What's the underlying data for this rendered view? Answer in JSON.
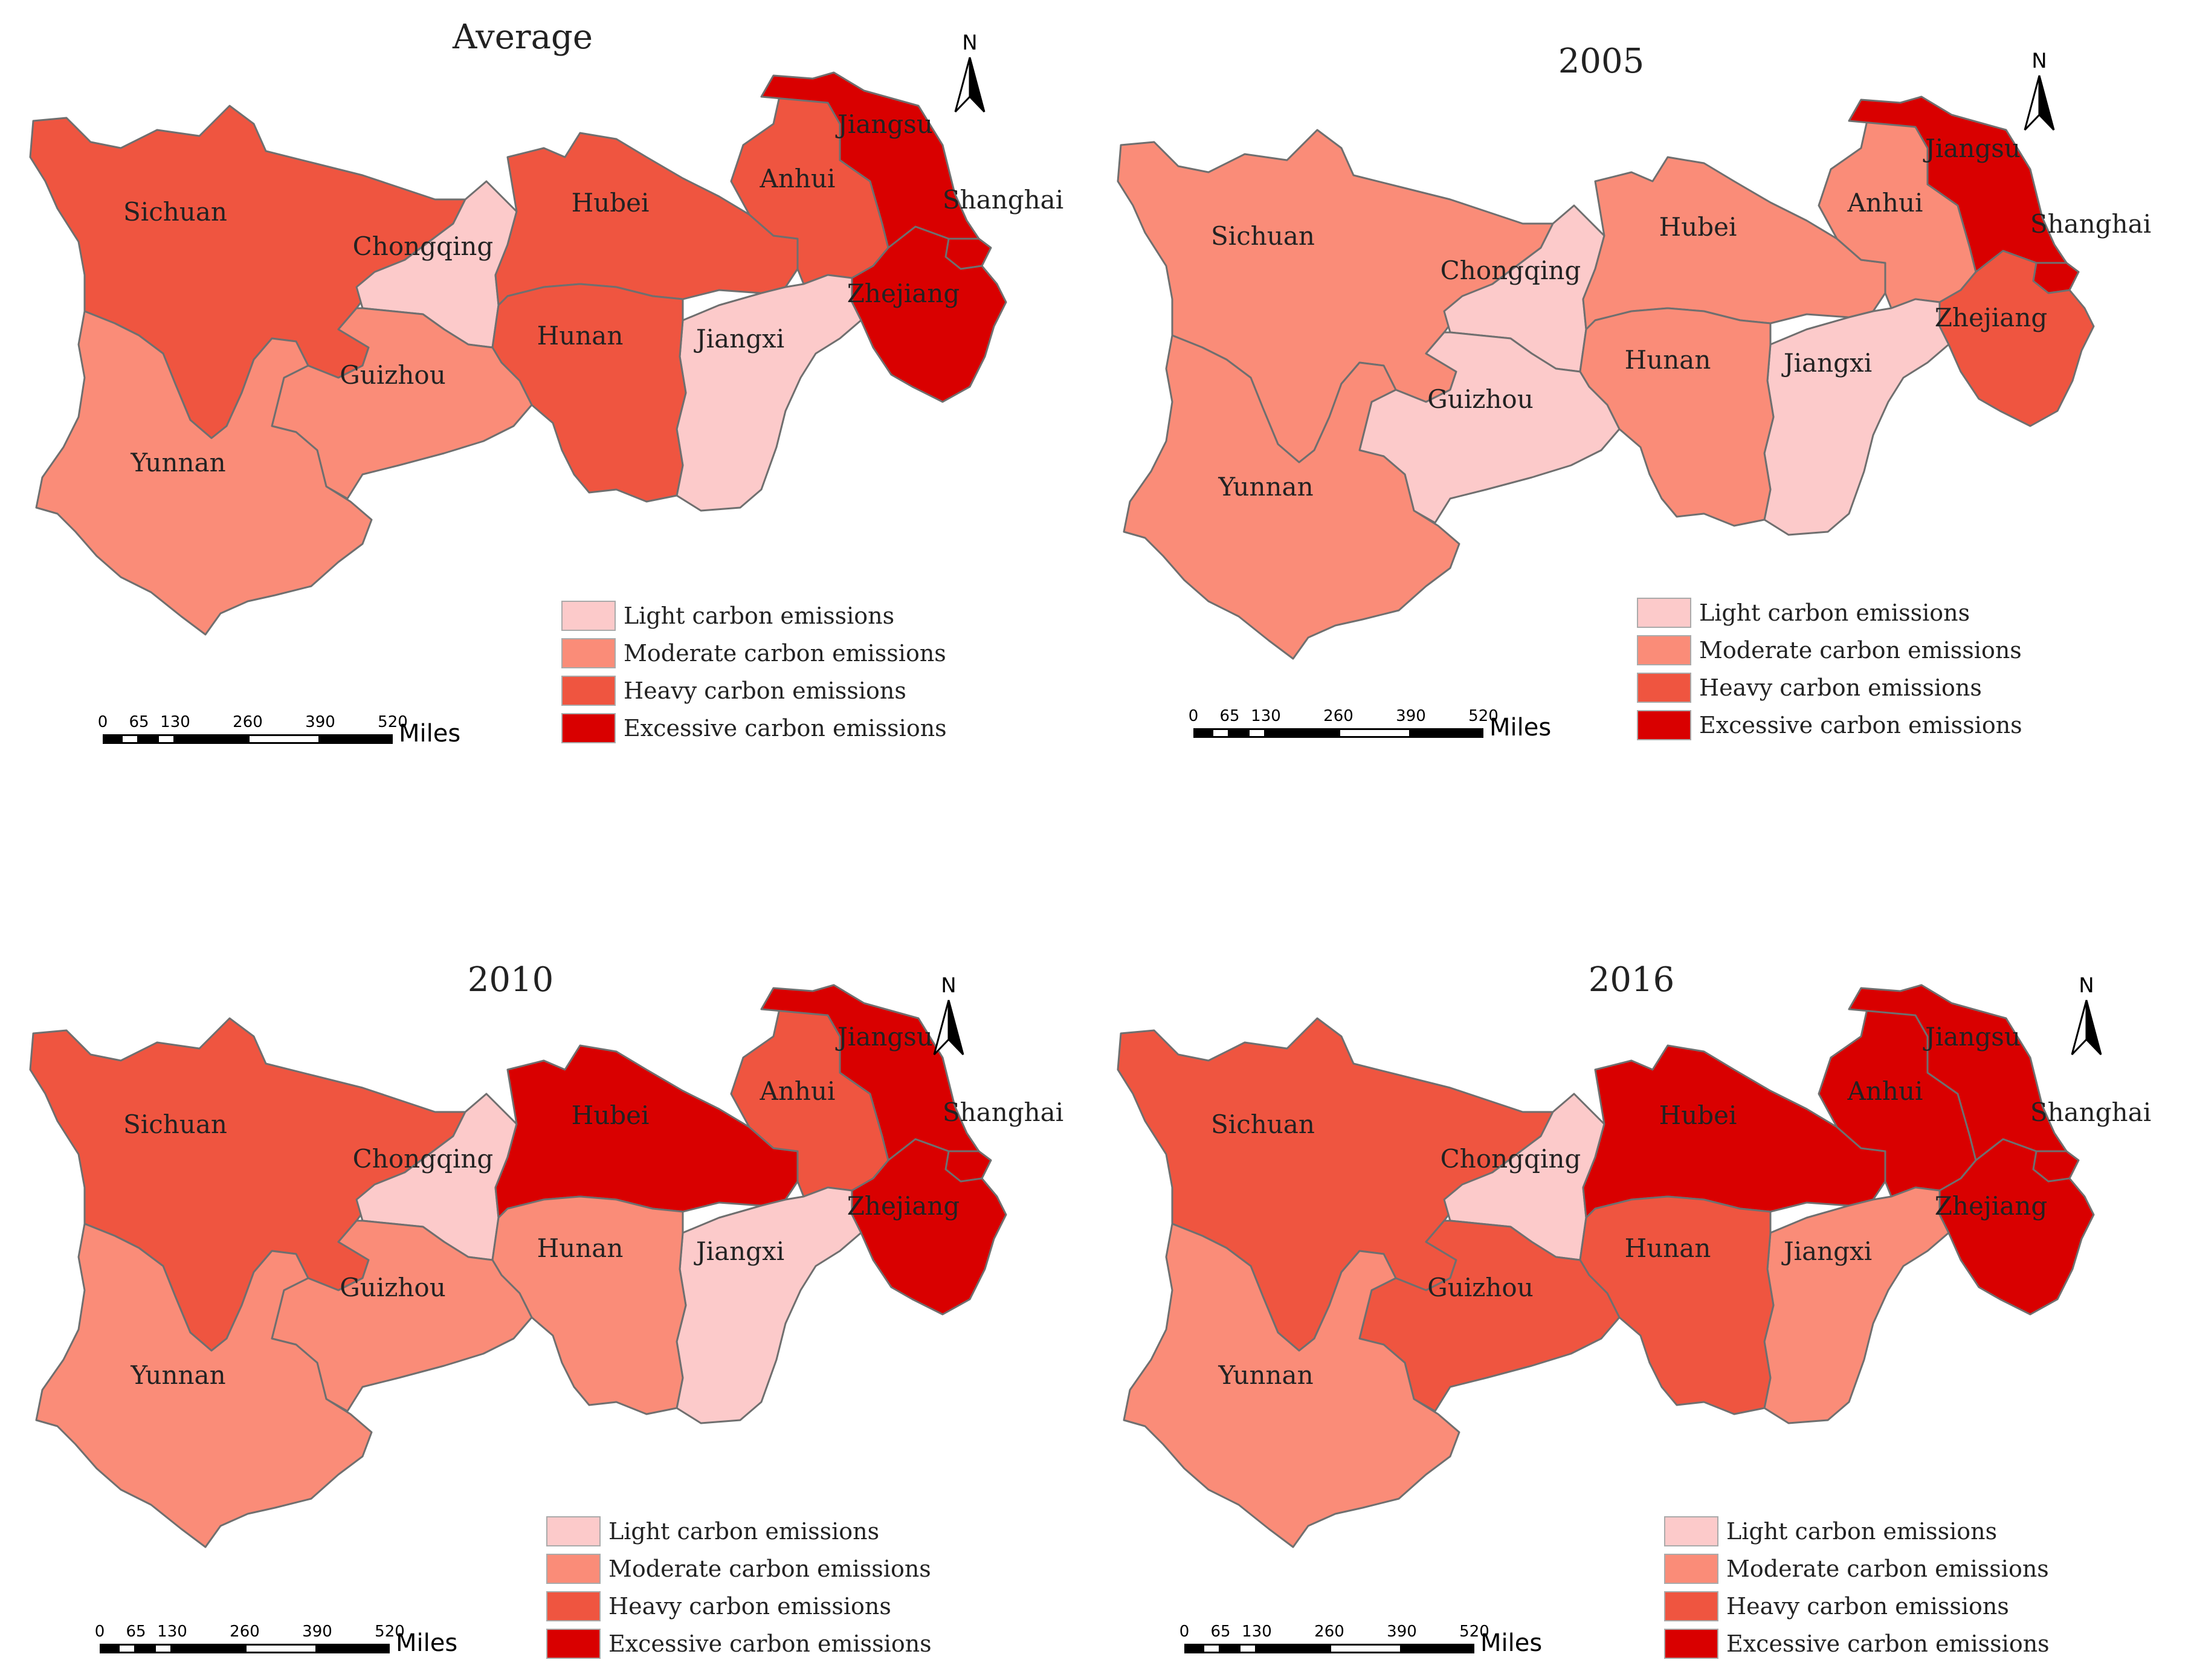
{
  "colors": {
    "light": "#fccaca",
    "moderate": "#fa8c78",
    "heavy": "#ef5540",
    "excessive": "#d90000"
  },
  "legend": [
    {
      "key": "light",
      "label": "Light carbon emissions"
    },
    {
      "key": "moderate",
      "label": "Moderate carbon emissions"
    },
    {
      "key": "heavy",
      "label": "Heavy carbon emissions"
    },
    {
      "key": "excessive",
      "label": "Excessive carbon emissions"
    }
  ],
  "scale_bar": {
    "ticks": [
      "0",
      "65",
      "130",
      "260",
      "390",
      "520"
    ],
    "unit": "Miles"
  },
  "north_label": "N",
  "provinces": [
    "Sichuan",
    "Chongqing",
    "Hubei",
    "Anhui",
    "Jiangsu",
    "Shanghai",
    "Zhejiang",
    "Jiangxi",
    "Hunan",
    "Guizhou",
    "Yunnan"
  ],
  "maps": [
    {
      "title": "Average",
      "classes": {
        "Sichuan": "heavy",
        "Chongqing": "light",
        "Hubei": "heavy",
        "Anhui": "heavy",
        "Jiangsu": "excessive",
        "Shanghai": "excessive",
        "Zhejiang": "excessive",
        "Jiangxi": "light",
        "Hunan": "heavy",
        "Guizhou": "moderate",
        "Yunnan": "moderate"
      }
    },
    {
      "title": "2005",
      "classes": {
        "Sichuan": "moderate",
        "Chongqing": "light",
        "Hubei": "moderate",
        "Anhui": "moderate",
        "Jiangsu": "excessive",
        "Shanghai": "excessive",
        "Zhejiang": "heavy",
        "Jiangxi": "light",
        "Hunan": "moderate",
        "Guizhou": "light",
        "Yunnan": "moderate"
      }
    },
    {
      "title": "2010",
      "classes": {
        "Sichuan": "heavy",
        "Chongqing": "light",
        "Hubei": "excessive",
        "Anhui": "heavy",
        "Jiangsu": "excessive",
        "Shanghai": "excessive",
        "Zhejiang": "excessive",
        "Jiangxi": "light",
        "Hunan": "moderate",
        "Guizhou": "moderate",
        "Yunnan": "moderate"
      }
    },
    {
      "title": "2016",
      "classes": {
        "Sichuan": "heavy",
        "Chongqing": "light",
        "Hubei": "excessive",
        "Anhui": "excessive",
        "Jiangsu": "excessive",
        "Shanghai": "excessive",
        "Zhejiang": "excessive",
        "Jiangxi": "moderate",
        "Hunan": "heavy",
        "Guizhou": "heavy",
        "Yunnan": "moderate"
      }
    }
  ]
}
